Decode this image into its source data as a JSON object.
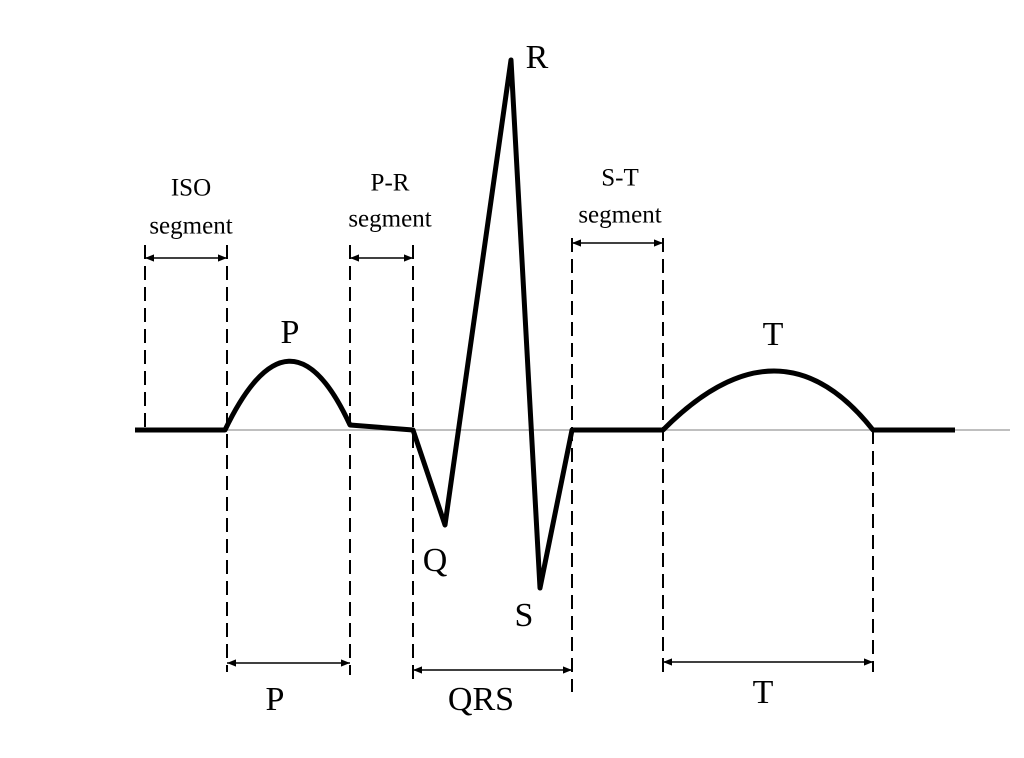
{
  "segments": [
    {
      "lines": [
        "ISO",
        "segment"
      ]
    },
    {
      "lines": [
        "P-R",
        "segment"
      ]
    },
    {
      "lines": [
        "S-T",
        "segment"
      ]
    }
  ],
  "waves": [
    "P",
    "Q",
    "R",
    "S",
    "T"
  ],
  "intervals": [
    "P",
    "QRS",
    "T"
  ]
}
